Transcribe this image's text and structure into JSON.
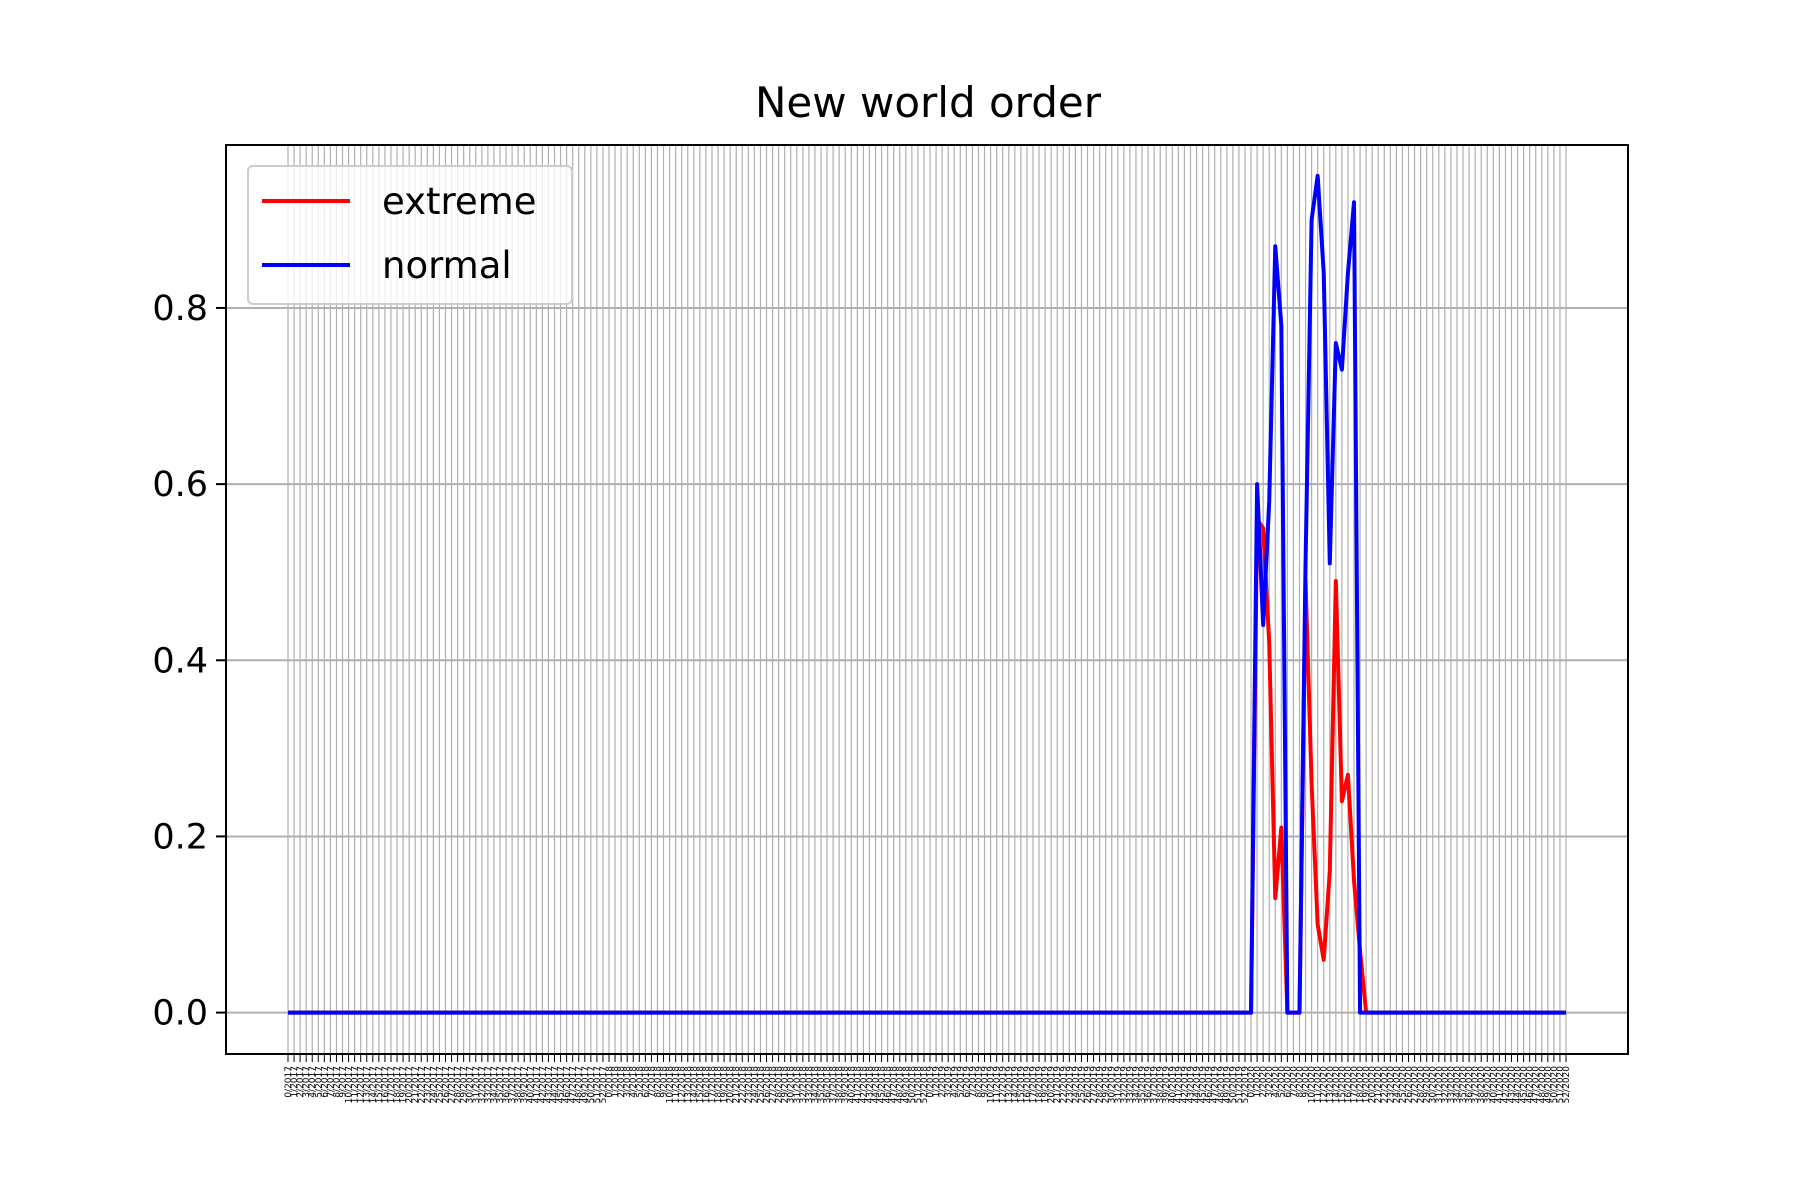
{
  "chart_data": {
    "type": "line",
    "title": "New world order",
    "xlabel": "",
    "ylabel": "",
    "ylim": [
      -0.047,
      0.985
    ],
    "yticks": [
      "0.0",
      "0.2",
      "0.4",
      "0.6",
      "0.8"
    ],
    "ytick_values": [
      0.0,
      0.2,
      0.4,
      0.6,
      0.8
    ],
    "grid": true,
    "legend_position": "top-left",
    "x_start_label": "0/2017",
    "x_end_label": "52/2020",
    "x": [
      "0/2017",
      "1/2017",
      "2/2017",
      "3/2017",
      "4/2017",
      "5/2017",
      "6/2017",
      "7/2017",
      "8/2017",
      "9/2017",
      "10/2017",
      "11/2017",
      "12/2017",
      "13/2017",
      "14/2017",
      "15/2017",
      "16/2017",
      "17/2017",
      "18/2017",
      "19/2017",
      "20/2017",
      "21/2017",
      "22/2017",
      "23/2017",
      "24/2017",
      "25/2017",
      "26/2017",
      "27/2017",
      "28/2017",
      "29/2017",
      "30/2017",
      "31/2017",
      "32/2017",
      "33/2017",
      "34/2017",
      "35/2017",
      "36/2017",
      "37/2017",
      "38/2017",
      "39/2017",
      "40/2017",
      "41/2017",
      "42/2017",
      "43/2017",
      "44/2017",
      "45/2017",
      "46/2017",
      "47/2017",
      "48/2017",
      "49/2017",
      "50/2017",
      "51/2017",
      "52/2017",
      "0/2018",
      "1/2018",
      "2/2018",
      "3/2018",
      "4/2018",
      "5/2018",
      "6/2018",
      "7/2018",
      "8/2018",
      "9/2018",
      "10/2018",
      "11/2018",
      "12/2018",
      "13/2018",
      "14/2018",
      "15/2018",
      "16/2018",
      "17/2018",
      "18/2018",
      "19/2018",
      "20/2018",
      "21/2018",
      "22/2018",
      "23/2018",
      "24/2018",
      "25/2018",
      "26/2018",
      "27/2018",
      "28/2018",
      "29/2018",
      "30/2018",
      "31/2018",
      "32/2018",
      "33/2018",
      "34/2018",
      "35/2018",
      "36/2018",
      "37/2018",
      "38/2018",
      "39/2018",
      "40/2018",
      "41/2018",
      "42/2018",
      "43/2018",
      "44/2018",
      "45/2018",
      "46/2018",
      "47/2018",
      "48/2018",
      "49/2018",
      "50/2018",
      "51/2018",
      "52/2018",
      "0/2019",
      "1/2019",
      "2/2019",
      "3/2019",
      "4/2019",
      "5/2019",
      "6/2019",
      "7/2019",
      "8/2019",
      "9/2019",
      "10/2019",
      "11/2019",
      "12/2019",
      "13/2019",
      "14/2019",
      "15/2019",
      "16/2019",
      "17/2019",
      "18/2019",
      "19/2019",
      "20/2019",
      "21/2019",
      "22/2019",
      "23/2019",
      "24/2019",
      "25/2019",
      "26/2019",
      "27/2019",
      "28/2019",
      "29/2019",
      "30/2019",
      "31/2019",
      "32/2019",
      "33/2019",
      "34/2019",
      "35/2019",
      "36/2019",
      "37/2019",
      "38/2019",
      "39/2019",
      "40/2019",
      "41/2019",
      "42/2019",
      "43/2019",
      "44/2019",
      "45/2019",
      "46/2019",
      "47/2019",
      "48/2019",
      "49/2019",
      "50/2019",
      "51/2019",
      "52/2019",
      "0/2020",
      "1/2020",
      "2/2020",
      "3/2020",
      "4/2020",
      "5/2020",
      "6/2020",
      "7/2020",
      "8/2020",
      "9/2020",
      "10/2020",
      "11/2020",
      "12/2020",
      "13/2020",
      "14/2020",
      "15/2020",
      "16/2020",
      "17/2020",
      "18/2020",
      "19/2020",
      "20/2020",
      "21/2020",
      "22/2020",
      "23/2020",
      "24/2020",
      "25/2020",
      "26/2020",
      "27/2020",
      "28/2020",
      "29/2020",
      "30/2020",
      "31/2020",
      "32/2020",
      "33/2020",
      "34/2020",
      "35/2020",
      "36/2020",
      "37/2020",
      "38/2020",
      "39/2020",
      "40/2020",
      "41/2020",
      "42/2020",
      "43/2020",
      "44/2020",
      "45/2020",
      "46/2020",
      "47/2020",
      "48/2020",
      "49/2020",
      "50/2020",
      "51/2020",
      "52/2020"
    ],
    "series": [
      {
        "name": "extreme",
        "color": "#ff0000",
        "points": [
          [
            "0/2017",
            0
          ],
          [
            "52/2019",
            0
          ],
          [
            "0/2020",
            0.0
          ],
          [
            "1/2020",
            0.56
          ],
          [
            "2/2020",
            0.55
          ],
          [
            "3/2020",
            0.42
          ],
          [
            "4/2020",
            0.13
          ],
          [
            "5/2020",
            0.21
          ],
          [
            "6/2020",
            0.0
          ],
          [
            "7/2020",
            0.0
          ],
          [
            "8/2020",
            0.0
          ],
          [
            "9/2020",
            0.49
          ],
          [
            "10/2020",
            0.26
          ],
          [
            "11/2020",
            0.1
          ],
          [
            "12/2020",
            0.06
          ],
          [
            "13/2020",
            0.16
          ],
          [
            "14/2020",
            0.49
          ],
          [
            "15/2020",
            0.24
          ],
          [
            "16/2020",
            0.27
          ],
          [
            "17/2020",
            0.15
          ],
          [
            "18/2020",
            0.07
          ],
          [
            "19/2020",
            0.0
          ],
          [
            "52/2020",
            0
          ]
        ]
      },
      {
        "name": "normal",
        "color": "#0000ff",
        "points": [
          [
            "0/2017",
            0
          ],
          [
            "52/2019",
            0
          ],
          [
            "0/2020",
            0.0
          ],
          [
            "1/2020",
            0.6
          ],
          [
            "2/2020",
            0.44
          ],
          [
            "3/2020",
            0.58
          ],
          [
            "4/2020",
            0.87
          ],
          [
            "5/2020",
            0.78
          ],
          [
            "6/2020",
            0.0
          ],
          [
            "7/2020",
            0.0
          ],
          [
            "8/2020",
            0.0
          ],
          [
            "9/2020",
            0.51
          ],
          [
            "10/2020",
            0.9
          ],
          [
            "11/2020",
            0.95
          ],
          [
            "12/2020",
            0.84
          ],
          [
            "13/2020",
            0.51
          ],
          [
            "14/2020",
            0.76
          ],
          [
            "15/2020",
            0.73
          ],
          [
            "16/2020",
            0.84
          ],
          [
            "17/2020",
            0.92
          ],
          [
            "18/2020",
            0.0
          ],
          [
            "52/2020",
            0
          ]
        ]
      }
    ]
  }
}
